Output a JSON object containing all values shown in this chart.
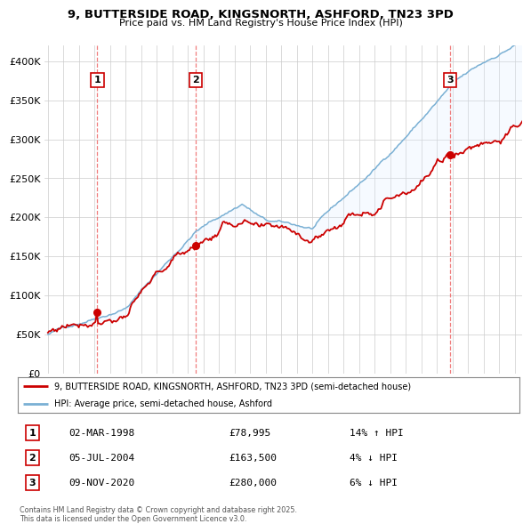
{
  "title": "9, BUTTERSIDE ROAD, KINGSNORTH, ASHFORD, TN23 3PD",
  "subtitle": "Price paid vs. HM Land Registry's House Price Index (HPI)",
  "legend_property": "9, BUTTERSIDE ROAD, KINGSNORTH, ASHFORD, TN23 3PD (semi-detached house)",
  "legend_hpi": "HPI: Average price, semi-detached house, Ashford",
  "footer": "Contains HM Land Registry data © Crown copyright and database right 2025.\nThis data is licensed under the Open Government Licence v3.0.",
  "sales": [
    {
      "num": 1,
      "date": "02-MAR-1998",
      "price": 78995,
      "hpi_diff": "14% ↑ HPI",
      "year": 1998.17
    },
    {
      "num": 2,
      "date": "05-JUL-2004",
      "price": 163500,
      "hpi_diff": "4% ↓ HPI",
      "year": 2004.51
    },
    {
      "num": 3,
      "date": "09-NOV-2020",
      "price": 280000,
      "hpi_diff": "6% ↓ HPI",
      "year": 2020.86
    }
  ],
  "property_color": "#cc0000",
  "hpi_color": "#7ab0d4",
  "hpi_fill_color": "#ddeeff",
  "vline_color": "#ee6666",
  "marker_box_color": "#cc0000",
  "background_color": "#ffffff",
  "grid_color": "#cccccc",
  "ylim": [
    0,
    420000
  ],
  "xlim_start": 1994.8,
  "xlim_end": 2025.5
}
